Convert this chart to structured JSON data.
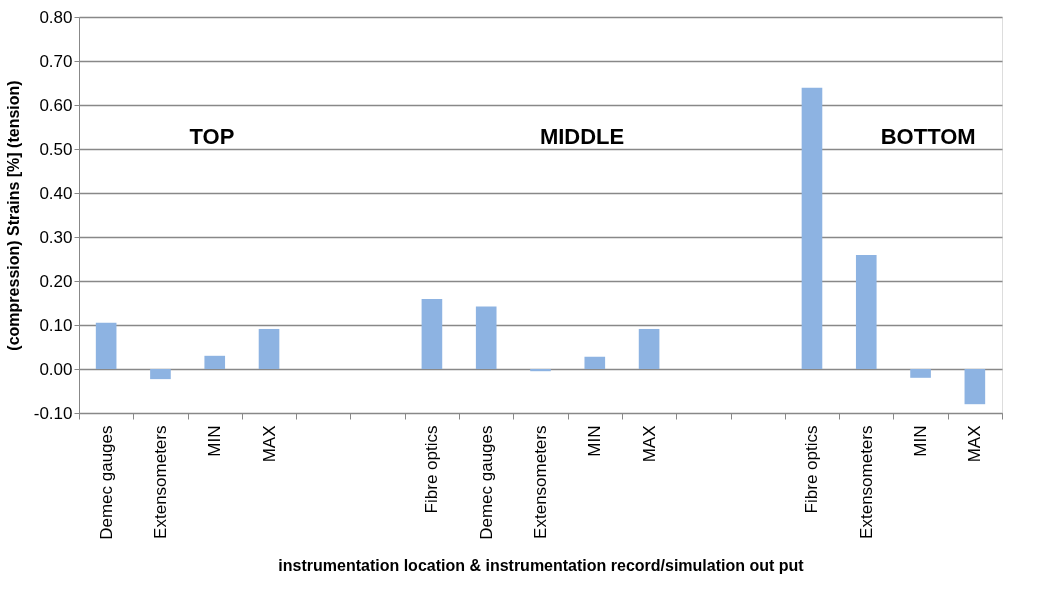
{
  "chart_data": {
    "type": "bar",
    "xlabel": "instrumentation location & instrumentation record/simulation out put",
    "ylabel": "(compression)          Strains [%]          (tension)",
    "categories": [
      "Demec gauges",
      "Extensometers",
      "MIN",
      "MAX",
      null,
      null,
      "Fibre optics",
      "Demec gauges",
      "Extensometers",
      "MIN",
      "MAX",
      null,
      null,
      "Fibre optics",
      "Extensometers",
      "MIN",
      "MAX"
    ],
    "values": [
      0.105,
      -0.023,
      0.03,
      0.091,
      null,
      null,
      0.159,
      0.142,
      -0.005,
      0.028,
      0.091,
      null,
      null,
      0.639,
      0.259,
      -0.02,
      -0.08
    ],
    "color": "#8db3e2",
    "ylim": [
      -0.1,
      0.8
    ],
    "yticks": [
      {
        "value": -0.1,
        "label": "-0.10"
      },
      {
        "value": 0,
        "label": "0.00"
      },
      {
        "value": 0.1,
        "label": "0.10"
      },
      {
        "value": 0.2,
        "label": "0.20"
      },
      {
        "value": 0.3,
        "label": "0.30"
      },
      {
        "value": 0.4,
        "label": "0.40"
      },
      {
        "value": 0.5,
        "label": "0.50"
      },
      {
        "value": 0.6,
        "label": "0.60"
      },
      {
        "value": 0.7,
        "label": "0.70"
      },
      {
        "value": 0.8,
        "label": "0.80"
      }
    ],
    "grid": "y",
    "annotations": [
      "TOP",
      "MIDDLE",
      "BOTTOM"
    ]
  }
}
